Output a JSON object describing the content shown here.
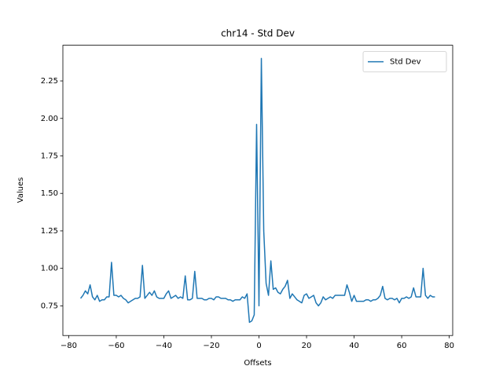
{
  "chart_data": {
    "type": "line",
    "title": "chr14 - Std Dev",
    "xlabel": "Offsets",
    "ylabel": "Values",
    "x": [
      -75,
      -74,
      -73,
      -72,
      -71,
      -70,
      -69,
      -68,
      -67,
      -66,
      -65,
      -64,
      -63,
      -62,
      -61,
      -60,
      -59,
      -58,
      -57,
      -56,
      -55,
      -54,
      -53,
      -52,
      -51,
      -50,
      -49,
      -48,
      -47,
      -46,
      -45,
      -44,
      -43,
      -42,
      -41,
      -40,
      -39,
      -38,
      -37,
      -36,
      -35,
      -34,
      -33,
      -32,
      -31,
      -30,
      -29,
      -28,
      -27,
      -26,
      -25,
      -24,
      -23,
      -22,
      -21,
      -20,
      -19,
      -18,
      -17,
      -16,
      -15,
      -14,
      -13,
      -12,
      -11,
      -10,
      -9,
      -8,
      -7,
      -6,
      -5,
      -4,
      -3,
      -2,
      -1,
      0,
      1,
      2,
      3,
      4,
      5,
      6,
      7,
      8,
      9,
      10,
      11,
      12,
      13,
      14,
      15,
      16,
      17,
      18,
      19,
      20,
      21,
      22,
      23,
      24,
      25,
      26,
      27,
      28,
      29,
      30,
      31,
      32,
      33,
      34,
      35,
      36,
      37,
      38,
      39,
      40,
      41,
      42,
      43,
      44,
      45,
      46,
      47,
      48,
      49,
      50,
      51,
      52,
      53,
      54,
      55,
      56,
      57,
      58,
      59,
      60,
      61,
      62,
      63,
      64,
      65,
      66,
      67,
      68,
      69,
      70,
      71,
      72,
      73,
      74
    ],
    "series": [
      {
        "name": "Std Dev",
        "color": "#1f77b4",
        "values": [
          0.8,
          0.82,
          0.85,
          0.83,
          0.89,
          0.81,
          0.79,
          0.82,
          0.78,
          0.79,
          0.79,
          0.81,
          0.81,
          1.04,
          0.82,
          0.82,
          0.81,
          0.82,
          0.8,
          0.79,
          0.77,
          0.78,
          0.79,
          0.8,
          0.8,
          0.81,
          1.02,
          0.8,
          0.82,
          0.84,
          0.82,
          0.85,
          0.81,
          0.8,
          0.8,
          0.8,
          0.83,
          0.85,
          0.8,
          0.81,
          0.82,
          0.8,
          0.81,
          0.8,
          0.95,
          0.79,
          0.79,
          0.8,
          0.98,
          0.8,
          0.8,
          0.8,
          0.79,
          0.79,
          0.8,
          0.8,
          0.79,
          0.81,
          0.81,
          0.8,
          0.8,
          0.8,
          0.79,
          0.79,
          0.78,
          0.79,
          0.79,
          0.79,
          0.81,
          0.8,
          0.83,
          0.64,
          0.65,
          0.69,
          1.96,
          0.75,
          2.4,
          1.25,
          0.9,
          0.82,
          1.05,
          0.86,
          0.87,
          0.84,
          0.83,
          0.86,
          0.88,
          0.92,
          0.8,
          0.83,
          0.81,
          0.79,
          0.78,
          0.77,
          0.82,
          0.83,
          0.8,
          0.81,
          0.82,
          0.77,
          0.75,
          0.77,
          0.81,
          0.79,
          0.8,
          0.81,
          0.8,
          0.82,
          0.82,
          0.82,
          0.82,
          0.82,
          0.89,
          0.84,
          0.78,
          0.82,
          0.78,
          0.78,
          0.78,
          0.78,
          0.79,
          0.79,
          0.78,
          0.79,
          0.79,
          0.8,
          0.82,
          0.88,
          0.8,
          0.79,
          0.8,
          0.8,
          0.79,
          0.8,
          0.77,
          0.8,
          0.8,
          0.81,
          0.8,
          0.81,
          0.87,
          0.81,
          0.81,
          0.81,
          1.0,
          0.82,
          0.8,
          0.82,
          0.81,
          0.81
        ]
      }
    ],
    "xlim": [
      -82.45,
      81.45
    ],
    "ylim": [
      0.552,
      2.488
    ],
    "xticks": [
      {
        "value": -80,
        "label": "−80"
      },
      {
        "value": -60,
        "label": "−60"
      },
      {
        "value": -40,
        "label": "−40"
      },
      {
        "value": -20,
        "label": "−20"
      },
      0,
      20,
      40,
      60,
      80
    ],
    "yticks": [
      0.75,
      {
        "value": 1,
        "label": "1.00"
      },
      1.25,
      {
        "value": 1.5,
        "label": "1.50"
      },
      1.75,
      {
        "value": 2,
        "label": "2.00"
      },
      2.25
    ],
    "legend": "upper right"
  }
}
